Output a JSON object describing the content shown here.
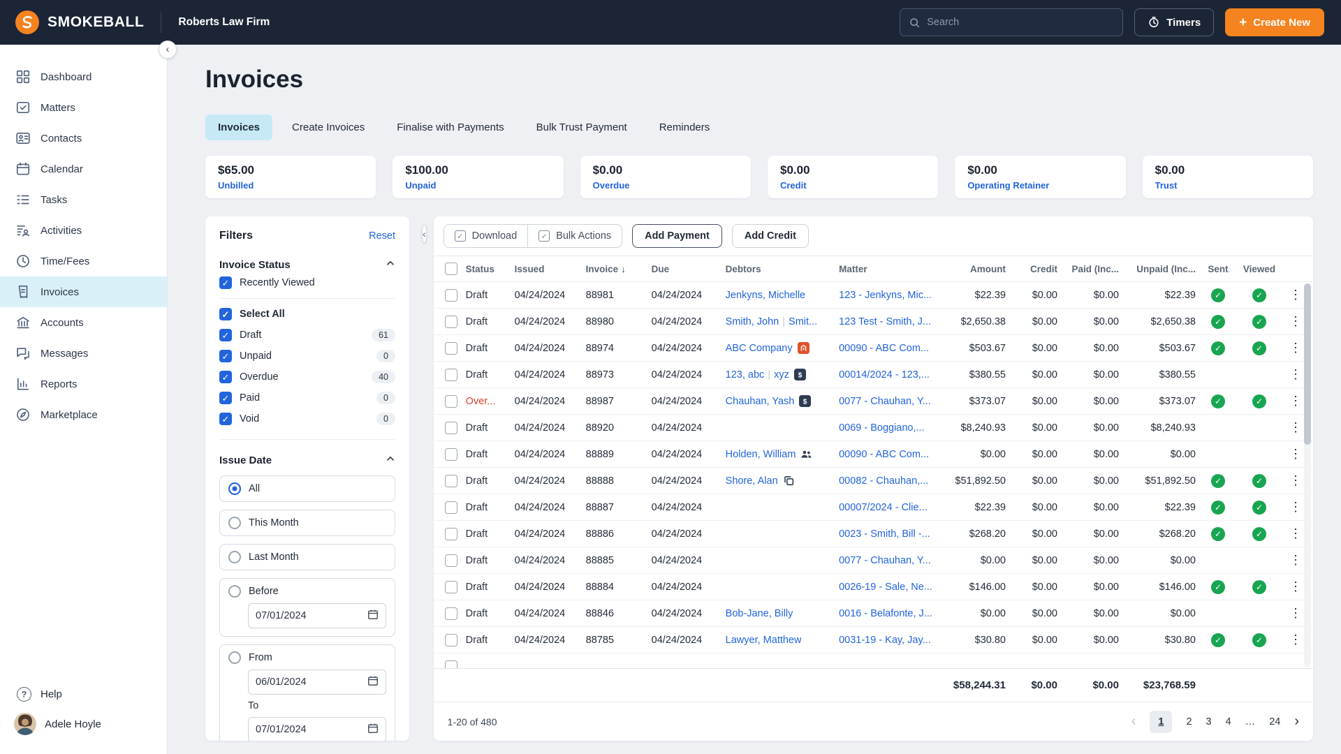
{
  "topbar": {
    "brand": "SMOKEBALL",
    "firm": "Roberts Law Firm",
    "search_placeholder": "Search",
    "timers_label": "Timers",
    "create_new_label": "Create New"
  },
  "sidebar": {
    "items": [
      {
        "label": "Dashboard",
        "icon": "dashboard-icon",
        "active": false
      },
      {
        "label": "Matters",
        "icon": "matters-icon",
        "active": false
      },
      {
        "label": "Contacts",
        "icon": "contacts-icon",
        "active": false
      },
      {
        "label": "Calendar",
        "icon": "calendar-icon",
        "active": false
      },
      {
        "label": "Tasks",
        "icon": "tasks-icon",
        "active": false
      },
      {
        "label": "Activities",
        "icon": "activities-icon",
        "active": false
      },
      {
        "label": "Time/Fees",
        "icon": "time-icon",
        "active": false
      },
      {
        "label": "Invoices",
        "icon": "invoices-icon",
        "active": true
      },
      {
        "label": "Accounts",
        "icon": "accounts-icon",
        "active": false
      },
      {
        "label": "Messages",
        "icon": "messages-icon",
        "active": false
      },
      {
        "label": "Reports",
        "icon": "reports-icon",
        "active": false
      },
      {
        "label": "Marketplace",
        "icon": "marketplace-icon",
        "active": false
      }
    ],
    "help_label": "Help",
    "user_name": "Adele Hoyle"
  },
  "page": {
    "title": "Invoices",
    "tabs": [
      {
        "label": "Invoices",
        "active": true
      },
      {
        "label": "Create Invoices",
        "active": false
      },
      {
        "label": "Finalise with Payments",
        "active": false
      },
      {
        "label": "Bulk Trust Payment",
        "active": false
      },
      {
        "label": "Reminders",
        "active": false
      }
    ],
    "summary_cards": [
      {
        "amount": "$65.00",
        "label": "Unbilled"
      },
      {
        "amount": "$100.00",
        "label": "Unpaid"
      },
      {
        "amount": "$0.00",
        "label": "Overdue"
      },
      {
        "amount": "$0.00",
        "label": "Credit"
      },
      {
        "amount": "$0.00",
        "label": "Operating Retainer"
      },
      {
        "amount": "$0.00",
        "label": "Trust"
      }
    ]
  },
  "filters": {
    "title": "Filters",
    "reset_label": "Reset",
    "invoice_status": {
      "title": "Invoice Status",
      "options": [
        {
          "label": "Recently Viewed",
          "checked": true,
          "divider_after": true
        },
        {
          "label": "Select All",
          "checked": true,
          "bold": true
        },
        {
          "label": "Draft",
          "checked": true,
          "count": "61"
        },
        {
          "label": "Unpaid",
          "checked": true,
          "count": "0"
        },
        {
          "label": "Overdue",
          "checked": true,
          "count": "40"
        },
        {
          "label": "Paid",
          "checked": true,
          "count": "0"
        },
        {
          "label": "Void",
          "checked": true,
          "count": "0"
        }
      ]
    },
    "issue_date": {
      "title": "Issue Date",
      "options": [
        {
          "label": "All",
          "selected": true
        },
        {
          "label": "This Month",
          "selected": false
        },
        {
          "label": "Last Month",
          "selected": false
        },
        {
          "label": "Before",
          "selected": false,
          "date": "07/01/2024"
        },
        {
          "label": "From",
          "selected": false,
          "date": "06/01/2024",
          "to_label": "To",
          "to_date": "07/01/2024"
        }
      ]
    }
  },
  "toolbar": {
    "download_label": "Download",
    "bulk_actions_label": "Bulk Actions",
    "add_payment_label": "Add Payment",
    "add_credit_label": "Add Credit"
  },
  "table": {
    "columns": [
      {
        "label": "Status"
      },
      {
        "label": "Issued"
      },
      {
        "label": "Invoice",
        "sort": "desc"
      },
      {
        "label": "Due"
      },
      {
        "label": "Debtors"
      },
      {
        "label": "Matter"
      },
      {
        "label": "Amount",
        "align": "right"
      },
      {
        "label": "Credit",
        "align": "right"
      },
      {
        "label": "Paid (Inc...",
        "align": "right"
      },
      {
        "label": "Unpaid (Inc...",
        "align": "right"
      },
      {
        "label": "Sent",
        "align": "center"
      },
      {
        "label": "Viewed",
        "align": "center"
      }
    ],
    "rows": [
      {
        "status": "Draft",
        "overdue": false,
        "issued": "04/24/2024",
        "invoice": "88981",
        "due": "04/24/2024",
        "debtors": [
          "Jenkyns, Michelle"
        ],
        "debtor_icon": null,
        "matter": "123 - Jenkyns, Mic...",
        "amount": "$22.39",
        "credit": "$0.00",
        "paid": "$0.00",
        "unpaid": "$22.39",
        "sent": true,
        "viewed": true
      },
      {
        "status": "Draft",
        "overdue": false,
        "issued": "04/24/2024",
        "invoice": "88980",
        "due": "04/24/2024",
        "debtors": [
          "Smith, John",
          "Smit..."
        ],
        "debtor_icon": null,
        "matter": "123 Test - Smith, J...",
        "amount": "$2,650.38",
        "credit": "$0.00",
        "paid": "$0.00",
        "unpaid": "$2,650.38",
        "sent": true,
        "viewed": true
      },
      {
        "status": "Draft",
        "overdue": false,
        "issued": "04/24/2024",
        "invoice": "88974",
        "due": "04/24/2024",
        "debtors": [
          "ABC Company"
        ],
        "debtor_icon": "company",
        "matter": "00090 - ABC Com...",
        "amount": "$503.67",
        "credit": "$0.00",
        "paid": "$0.00",
        "unpaid": "$503.67",
        "sent": true,
        "viewed": true
      },
      {
        "status": "Draft",
        "overdue": false,
        "issued": "04/24/2024",
        "invoice": "88973",
        "due": "04/24/2024",
        "debtors": [
          "123, abc",
          "xyz"
        ],
        "debtor_icon": "dollar",
        "matter": "00014/2024 - 123,...",
        "amount": "$380.55",
        "credit": "$0.00",
        "paid": "$0.00",
        "unpaid": "$380.55",
        "sent": false,
        "viewed": false
      },
      {
        "status": "Over...",
        "overdue": true,
        "issued": "04/24/2024",
        "invoice": "88987",
        "due": "04/24/2024",
        "debtors": [
          "Chauhan, Yash"
        ],
        "debtor_icon": "dollar",
        "matter": "0077 - Chauhan, Y...",
        "amount": "$373.07",
        "credit": "$0.00",
        "paid": "$0.00",
        "unpaid": "$373.07",
        "sent": true,
        "viewed": true
      },
      {
        "status": "Draft",
        "overdue": false,
        "issued": "04/24/2024",
        "invoice": "88920",
        "due": "04/24/2024",
        "debtors": [],
        "debtor_icon": null,
        "matter": "0069 - Boggiano,...",
        "amount": "$8,240.93",
        "credit": "$0.00",
        "paid": "$0.00",
        "unpaid": "$8,240.93",
        "sent": false,
        "viewed": false
      },
      {
        "status": "Draft",
        "overdue": false,
        "issued": "04/24/2024",
        "invoice": "88889",
        "due": "04/24/2024",
        "debtors": [
          "Holden, William"
        ],
        "debtor_icon": "people",
        "matter": "00090 - ABC Com...",
        "amount": "$0.00",
        "credit": "$0.00",
        "paid": "$0.00",
        "unpaid": "$0.00",
        "sent": false,
        "viewed": false
      },
      {
        "status": "Draft",
        "overdue": false,
        "issued": "04/24/2024",
        "invoice": "88888",
        "due": "04/24/2024",
        "debtors": [
          "Shore, Alan"
        ],
        "debtor_icon": "copy",
        "matter": "00082 - Chauhan,...",
        "amount": "$51,892.50",
        "credit": "$0.00",
        "paid": "$0.00",
        "unpaid": "$51,892.50",
        "sent": true,
        "viewed": true
      },
      {
        "status": "Draft",
        "overdue": false,
        "issued": "04/24/2024",
        "invoice": "88887",
        "due": "04/24/2024",
        "debtors": [],
        "debtor_icon": null,
        "matter": "00007/2024 - Clie...",
        "amount": "$22.39",
        "credit": "$0.00",
        "paid": "$0.00",
        "unpaid": "$22.39",
        "sent": true,
        "viewed": true
      },
      {
        "status": "Draft",
        "overdue": false,
        "issued": "04/24/2024",
        "invoice": "88886",
        "due": "04/24/2024",
        "debtors": [],
        "debtor_icon": null,
        "matter": "0023 - Smith, Bill -...",
        "amount": "$268.20",
        "credit": "$0.00",
        "paid": "$0.00",
        "unpaid": "$268.20",
        "sent": true,
        "viewed": true
      },
      {
        "status": "Draft",
        "overdue": false,
        "issued": "04/24/2024",
        "invoice": "88885",
        "due": "04/24/2024",
        "debtors": [],
        "debtor_icon": null,
        "matter": "0077 - Chauhan, Y...",
        "amount": "$0.00",
        "credit": "$0.00",
        "paid": "$0.00",
        "unpaid": "$0.00",
        "sent": false,
        "viewed": false
      },
      {
        "status": "Draft",
        "overdue": false,
        "issued": "04/24/2024",
        "invoice": "88884",
        "due": "04/24/2024",
        "debtors": [],
        "debtor_icon": null,
        "matter": "0026-19 - Sale, Ne...",
        "amount": "$146.00",
        "credit": "$0.00",
        "paid": "$0.00",
        "unpaid": "$146.00",
        "sent": true,
        "viewed": true
      },
      {
        "status": "Draft",
        "overdue": false,
        "issued": "04/24/2024",
        "invoice": "88846",
        "due": "04/24/2024",
        "debtors": [
          "Bob-Jane, Billy"
        ],
        "debtor_icon": null,
        "matter": "0016 - Belafonte, J...",
        "amount": "$0.00",
        "credit": "$0.00",
        "paid": "$0.00",
        "unpaid": "$0.00",
        "sent": false,
        "viewed": false
      },
      {
        "status": "Draft",
        "overdue": false,
        "issued": "04/24/2024",
        "invoice": "88785",
        "due": "04/24/2024",
        "debtors": [
          "Lawyer, Matthew"
        ],
        "debtor_icon": null,
        "matter": "0031-19 - Kay, Jay...",
        "amount": "$30.80",
        "credit": "$0.00",
        "paid": "$0.00",
        "unpaid": "$30.80",
        "sent": true,
        "viewed": true
      }
    ],
    "totals": {
      "amount": "$58,244.31",
      "credit": "$0.00",
      "paid": "$0.00",
      "unpaid": "$23,768.59"
    },
    "pagination": {
      "range_label": "1-20 of 480",
      "pages": [
        "1",
        "2",
        "3",
        "4",
        "...",
        "24"
      ],
      "active_page": "1"
    }
  },
  "colors": {
    "brand_orange": "#f5831f",
    "topbar_navy": "#1b2535",
    "link_blue": "#2264dc",
    "active_tab_blue": "#c7e9f6",
    "success_green": "#18a551",
    "overdue_red": "#d7402c"
  }
}
